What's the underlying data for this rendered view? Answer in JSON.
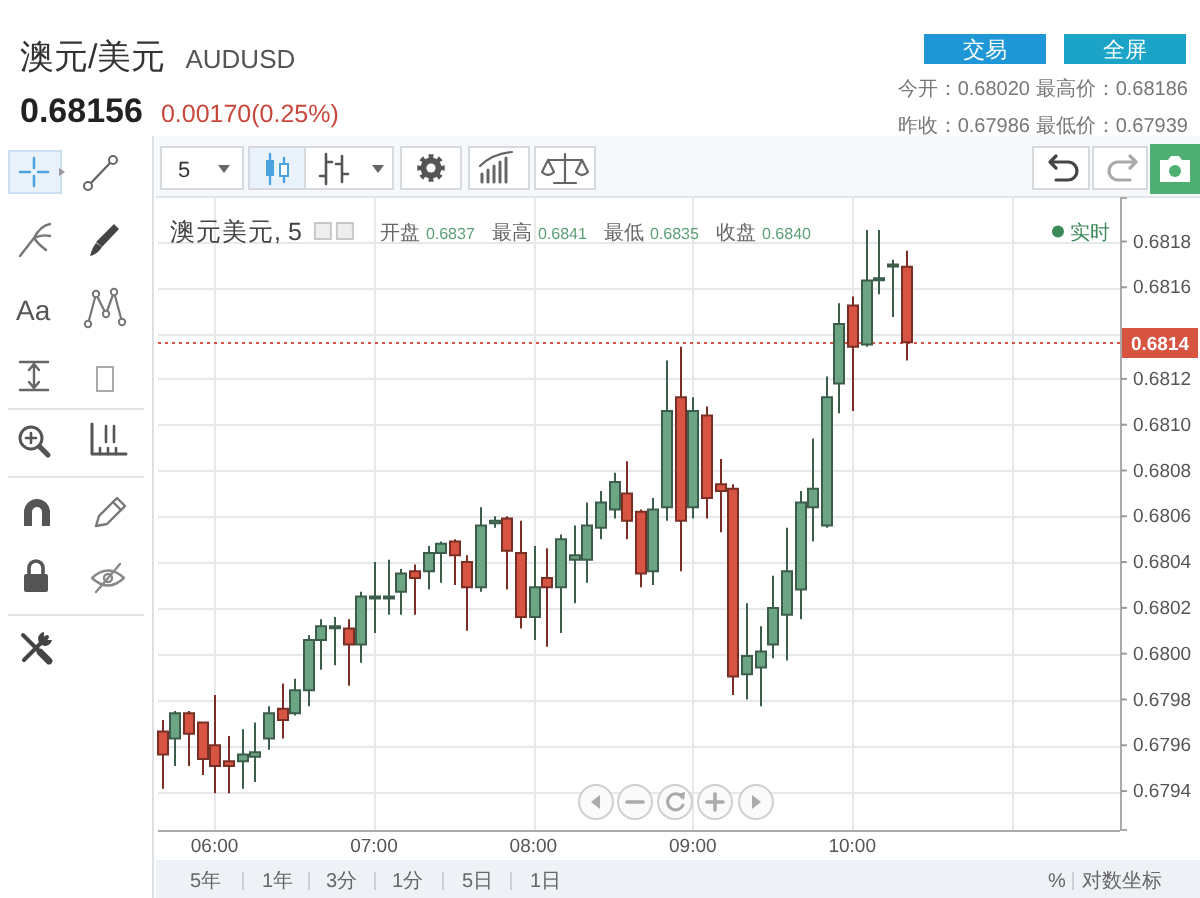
{
  "chart_data": {
    "type": "candlestick",
    "title": "澳元/美元",
    "subtitle": "AUDUSD",
    "x": [
      5.6667,
      5.75,
      5.8333,
      5.9167,
      6,
      6.0833,
      6.1667,
      6.25,
      6.3333,
      6.4167,
      6.5,
      6.5833,
      6.6667,
      6.75,
      6.8333,
      6.9167,
      7,
      7.0833,
      7.1667,
      7.25,
      7.3333,
      7.4167,
      7.5,
      7.5833,
      7.6667,
      7.75,
      7.8333,
      7.9167,
      8,
      8.0833,
      8.1667,
      8.25,
      8.3333,
      8.4167,
      8.5,
      8.5833,
      8.6667,
      8.75,
      8.8333,
      8.9167,
      9,
      9.0833,
      9.1667,
      9.25,
      9.3333,
      9.4167,
      9.5,
      9.5833,
      9.6667,
      9.75,
      9.8333,
      9.9167,
      10,
      10.0833,
      10.1667,
      10.25,
      10.3333
    ],
    "ohlc": [
      [
        0.67966,
        0.67971,
        0.67941,
        0.67956
      ],
      [
        0.67963,
        0.67975,
        0.67951,
        0.67974
      ],
      [
        0.67974,
        0.67975,
        0.67951,
        0.67965
      ],
      [
        0.6797,
        0.6797,
        0.67947,
        0.67954
      ],
      [
        0.6796,
        0.67982,
        0.67939,
        0.67951
      ],
      [
        0.67953,
        0.67964,
        0.67939,
        0.67951
      ],
      [
        0.67953,
        0.67967,
        0.67941,
        0.67956
      ],
      [
        0.67955,
        0.6797,
        0.67944,
        0.67957
      ],
      [
        0.67963,
        0.67977,
        0.67958,
        0.67974
      ],
      [
        0.67976,
        0.67987,
        0.67963,
        0.67971
      ],
      [
        0.67974,
        0.67989,
        0.67973,
        0.67984
      ],
      [
        0.67984,
        0.68008,
        0.67977,
        0.68006
      ],
      [
        0.68006,
        0.68015,
        0.67993,
        0.68012
      ],
      [
        0.68012,
        0.68016,
        0.67995,
        0.68012
      ],
      [
        0.68011,
        0.68015,
        0.67986,
        0.68004
      ],
      [
        0.68004,
        0.68027,
        0.67996,
        0.68025
      ],
      [
        0.68025,
        0.6804,
        0.68009,
        0.68025
      ],
      [
        0.68025,
        0.68041,
        0.68017,
        0.68025
      ],
      [
        0.68027,
        0.68037,
        0.68017,
        0.68035
      ],
      [
        0.68036,
        0.68039,
        0.68017,
        0.68033
      ],
      [
        0.68036,
        0.68047,
        0.68028,
        0.68044
      ],
      [
        0.68044,
        0.68049,
        0.68031,
        0.68048
      ],
      [
        0.68049,
        0.6805,
        0.6803,
        0.68043
      ],
      [
        0.6804,
        0.68043,
        0.6801,
        0.68029
      ],
      [
        0.68029,
        0.68064,
        0.68027,
        0.68056
      ],
      [
        0.68057,
        0.6806,
        0.68055,
        0.68058
      ],
      [
        0.68059,
        0.6806,
        0.68028,
        0.68045
      ],
      [
        0.68044,
        0.68058,
        0.68011,
        0.68016
      ],
      [
        0.68016,
        0.68047,
        0.68006,
        0.68029
      ],
      [
        0.68033,
        0.68046,
        0.68003,
        0.68029
      ],
      [
        0.68029,
        0.68052,
        0.68009,
        0.6805
      ],
      [
        0.68041,
        0.68056,
        0.68022,
        0.68043
      ],
      [
        0.68041,
        0.68066,
        0.68031,
        0.68056
      ],
      [
        0.68055,
        0.68071,
        0.6805,
        0.68066
      ],
      [
        0.68063,
        0.68079,
        0.68059,
        0.68075
      ],
      [
        0.6807,
        0.68084,
        0.6805,
        0.68058
      ],
      [
        0.68062,
        0.68063,
        0.68029,
        0.68035
      ],
      [
        0.68036,
        0.68068,
        0.6803,
        0.68063
      ],
      [
        0.68064,
        0.68128,
        0.68058,
        0.68106
      ],
      [
        0.68112,
        0.68134,
        0.68036,
        0.68058
      ],
      [
        0.68064,
        0.68112,
        0.68059,
        0.68106
      ],
      [
        0.68104,
        0.68108,
        0.68059,
        0.68068
      ],
      [
        0.68074,
        0.68085,
        0.68053,
        0.68071
      ],
      [
        0.68072,
        0.68074,
        0.67982,
        0.6799
      ],
      [
        0.67991,
        0.68022,
        0.6798,
        0.67999
      ],
      [
        0.67994,
        0.68012,
        0.67977,
        0.68001
      ],
      [
        0.68004,
        0.68034,
        0.67998,
        0.6802
      ],
      [
        0.68017,
        0.68055,
        0.67997,
        0.68036
      ],
      [
        0.68028,
        0.68071,
        0.68015,
        0.68066
      ],
      [
        0.68064,
        0.68094,
        0.68049,
        0.68072
      ],
      [
        0.68056,
        0.68121,
        0.68055,
        0.68112
      ],
      [
        0.68118,
        0.68153,
        0.68105,
        0.68144
      ],
      [
        0.68152,
        0.68156,
        0.68106,
        0.68134
      ],
      [
        0.68135,
        0.68185,
        0.68134,
        0.68163
      ],
      [
        0.68164,
        0.68185,
        0.68157,
        0.68164
      ],
      [
        0.6817,
        0.68172,
        0.68147,
        0.6817
      ],
      [
        0.68169,
        0.68176,
        0.68128,
        0.68136
      ]
    ],
    "colors": [
      "#d75442",
      "#6ba583",
      "#d75442",
      "#d75442",
      "#d75442",
      "#d75442",
      "#6ba583",
      "#6ba583",
      "#6ba583",
      "#d75442",
      "#6ba583",
      "#6ba583",
      "#6ba583",
      "#6ba583",
      "#d75442",
      "#6ba583",
      "#6ba583",
      "#6ba583",
      "#6ba583",
      "#d75442",
      "#6ba583",
      "#6ba583",
      "#d75442",
      "#d75442",
      "#6ba583",
      "#6ba583",
      "#d75442",
      "#d75442",
      "#6ba583",
      "#d75442",
      "#6ba583",
      "#6ba583",
      "#6ba583",
      "#6ba583",
      "#6ba583",
      "#d75442",
      "#d75442",
      "#6ba583",
      "#6ba583",
      "#d75442",
      "#6ba583",
      "#d75442",
      "#d75442",
      "#d75442",
      "#6ba583",
      "#6ba583",
      "#6ba583",
      "#6ba583",
      "#6ba583",
      "#6ba583",
      "#6ba583",
      "#6ba583",
      "#d75442",
      "#6ba583",
      "#6ba583",
      "#6ba583",
      "#d75442"
    ],
    "xlim": [
      5.645,
      11.68
    ],
    "xticks": [
      {
        "value": 6,
        "label": "06:00"
      },
      {
        "value": 7,
        "label": "07:00"
      },
      {
        "value": 8,
        "label": "08:00"
      },
      {
        "value": 9,
        "label": "09:00"
      },
      {
        "value": 10,
        "label": "10:00"
      },
      {
        "value": 11,
        "label": null
      }
    ],
    "ylim": [
      0.67923,
      0.68199
    ],
    "yticks": [
      0.6794,
      0.6796,
      0.6798,
      {
        "value": 0.68,
        "label": "0.6800"
      },
      0.6802,
      0.6804,
      0.6806,
      0.6808,
      {
        "value": 0.681,
        "label": "0.6810"
      },
      0.6812,
      {
        "value": 0.6814,
        "label": null
      },
      0.6816,
      0.6818
    ],
    "grid": true,
    "ref_lines": [
      {
        "axis": "y",
        "value": 0.68136,
        "label": "0.6814",
        "color": "#d75442",
        "line_style": "dotted"
      }
    ],
    "annotations": [
      "0.68156",
      "0.00170(0.25%)",
      "交易",
      "全屏",
      "今开：0.68020",
      "最高价：0.68186",
      "昨收：0.67986",
      "最低价：0.67939",
      "5",
      "澳元美元, 5",
      "开盘",
      "0.6837",
      "最高",
      "0.6841",
      "最低",
      "0.6835",
      "收盘",
      "0.6840",
      "实时",
      "Aa",
      "5年",
      "1年",
      "3分",
      "1分",
      "5日",
      "1日",
      "%",
      "对数坐标"
    ]
  }
}
